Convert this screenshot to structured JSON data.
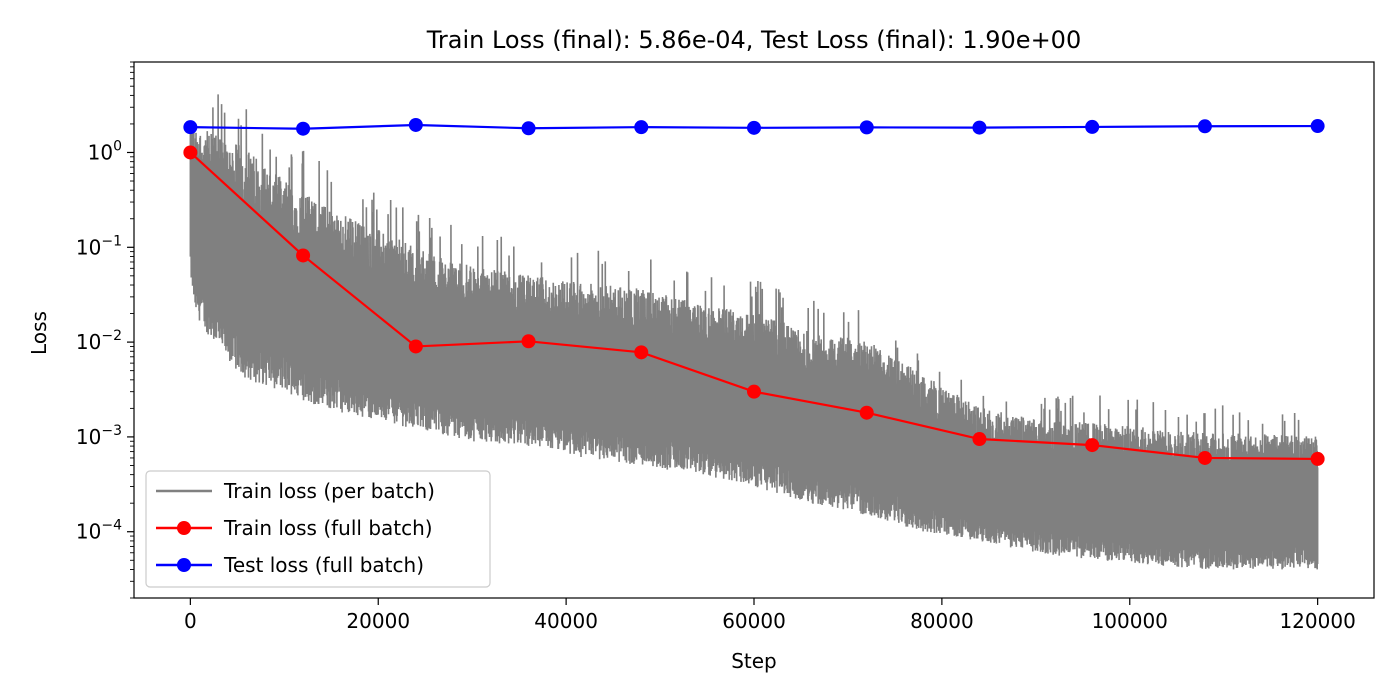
{
  "chart_data": {
    "type": "line",
    "title": "Train Loss (final): 5.86e-04, Test Loss (final): 1.90e+00",
    "xlabel": "Step",
    "ylabel": "Loss",
    "yscale": "log",
    "xlim": [
      -6000,
      126000
    ],
    "ylim": [
      2e-05,
      9
    ],
    "xticks": [
      0,
      20000,
      40000,
      60000,
      80000,
      100000,
      120000
    ],
    "xtick_labels": [
      "0",
      "20000",
      "40000",
      "60000",
      "80000",
      "100000",
      "120000"
    ],
    "yticks": [
      0.0001,
      0.001,
      0.01,
      0.1,
      1
    ],
    "ytick_labels": [
      {
        "base": "10",
        "exp": "−4"
      },
      {
        "base": "10",
        "exp": "−3"
      },
      {
        "base": "10",
        "exp": "−2"
      },
      {
        "base": "10",
        "exp": "−1"
      },
      {
        "base": "10",
        "exp": "0"
      }
    ],
    "grid": false,
    "legend_position": "lower-left",
    "series": [
      {
        "name": "Train loss (per batch)",
        "color": "#808080",
        "marker": "none",
        "envelope": {
          "x": [
            0,
            500,
            3000,
            6000,
            10000,
            14000,
            20000,
            24000,
            30000,
            36000,
            42000,
            48000,
            54000,
            60000,
            66000,
            72000,
            78000,
            84000,
            90000,
            96000,
            102000,
            108000,
            114000,
            120000
          ],
          "upper": [
            5,
            4.8,
            4.5,
            3.5,
            1.5,
            0.8,
            0.4,
            0.25,
            0.15,
            0.12,
            0.1,
            0.09,
            0.06,
            0.05,
            0.03,
            0.025,
            0.01,
            0.004,
            0.003,
            0.0028,
            0.0025,
            0.0022,
            0.0021,
            0.002
          ],
          "lower": [
            0.05,
            0.02,
            0.008,
            0.004,
            0.003,
            0.002,
            0.0015,
            0.0012,
            0.0009,
            0.0008,
            0.0006,
            0.0005,
            0.0004,
            0.0003,
            0.0002,
            0.00015,
            0.0001,
            8e-05,
            6e-05,
            5e-05,
            4.5e-05,
            4e-05,
            4e-05,
            4e-05
          ]
        }
      },
      {
        "name": "Train loss (full batch)",
        "color": "#ff0000",
        "marker": "circle",
        "x": [
          0,
          12000,
          24000,
          36000,
          48000,
          60000,
          72000,
          84000,
          96000,
          108000,
          120000
        ],
        "values": [
          1.0,
          0.082,
          0.009,
          0.0102,
          0.0078,
          0.003,
          0.0018,
          0.00095,
          0.00082,
          0.0006,
          0.000586
        ]
      },
      {
        "name": "Test loss (full batch)",
        "color": "#0000ff",
        "marker": "circle",
        "x": [
          0,
          12000,
          24000,
          36000,
          48000,
          60000,
          72000,
          84000,
          96000,
          108000,
          120000
        ],
        "values": [
          1.85,
          1.78,
          1.95,
          1.8,
          1.85,
          1.82,
          1.84,
          1.83,
          1.86,
          1.89,
          1.9
        ]
      }
    ]
  }
}
